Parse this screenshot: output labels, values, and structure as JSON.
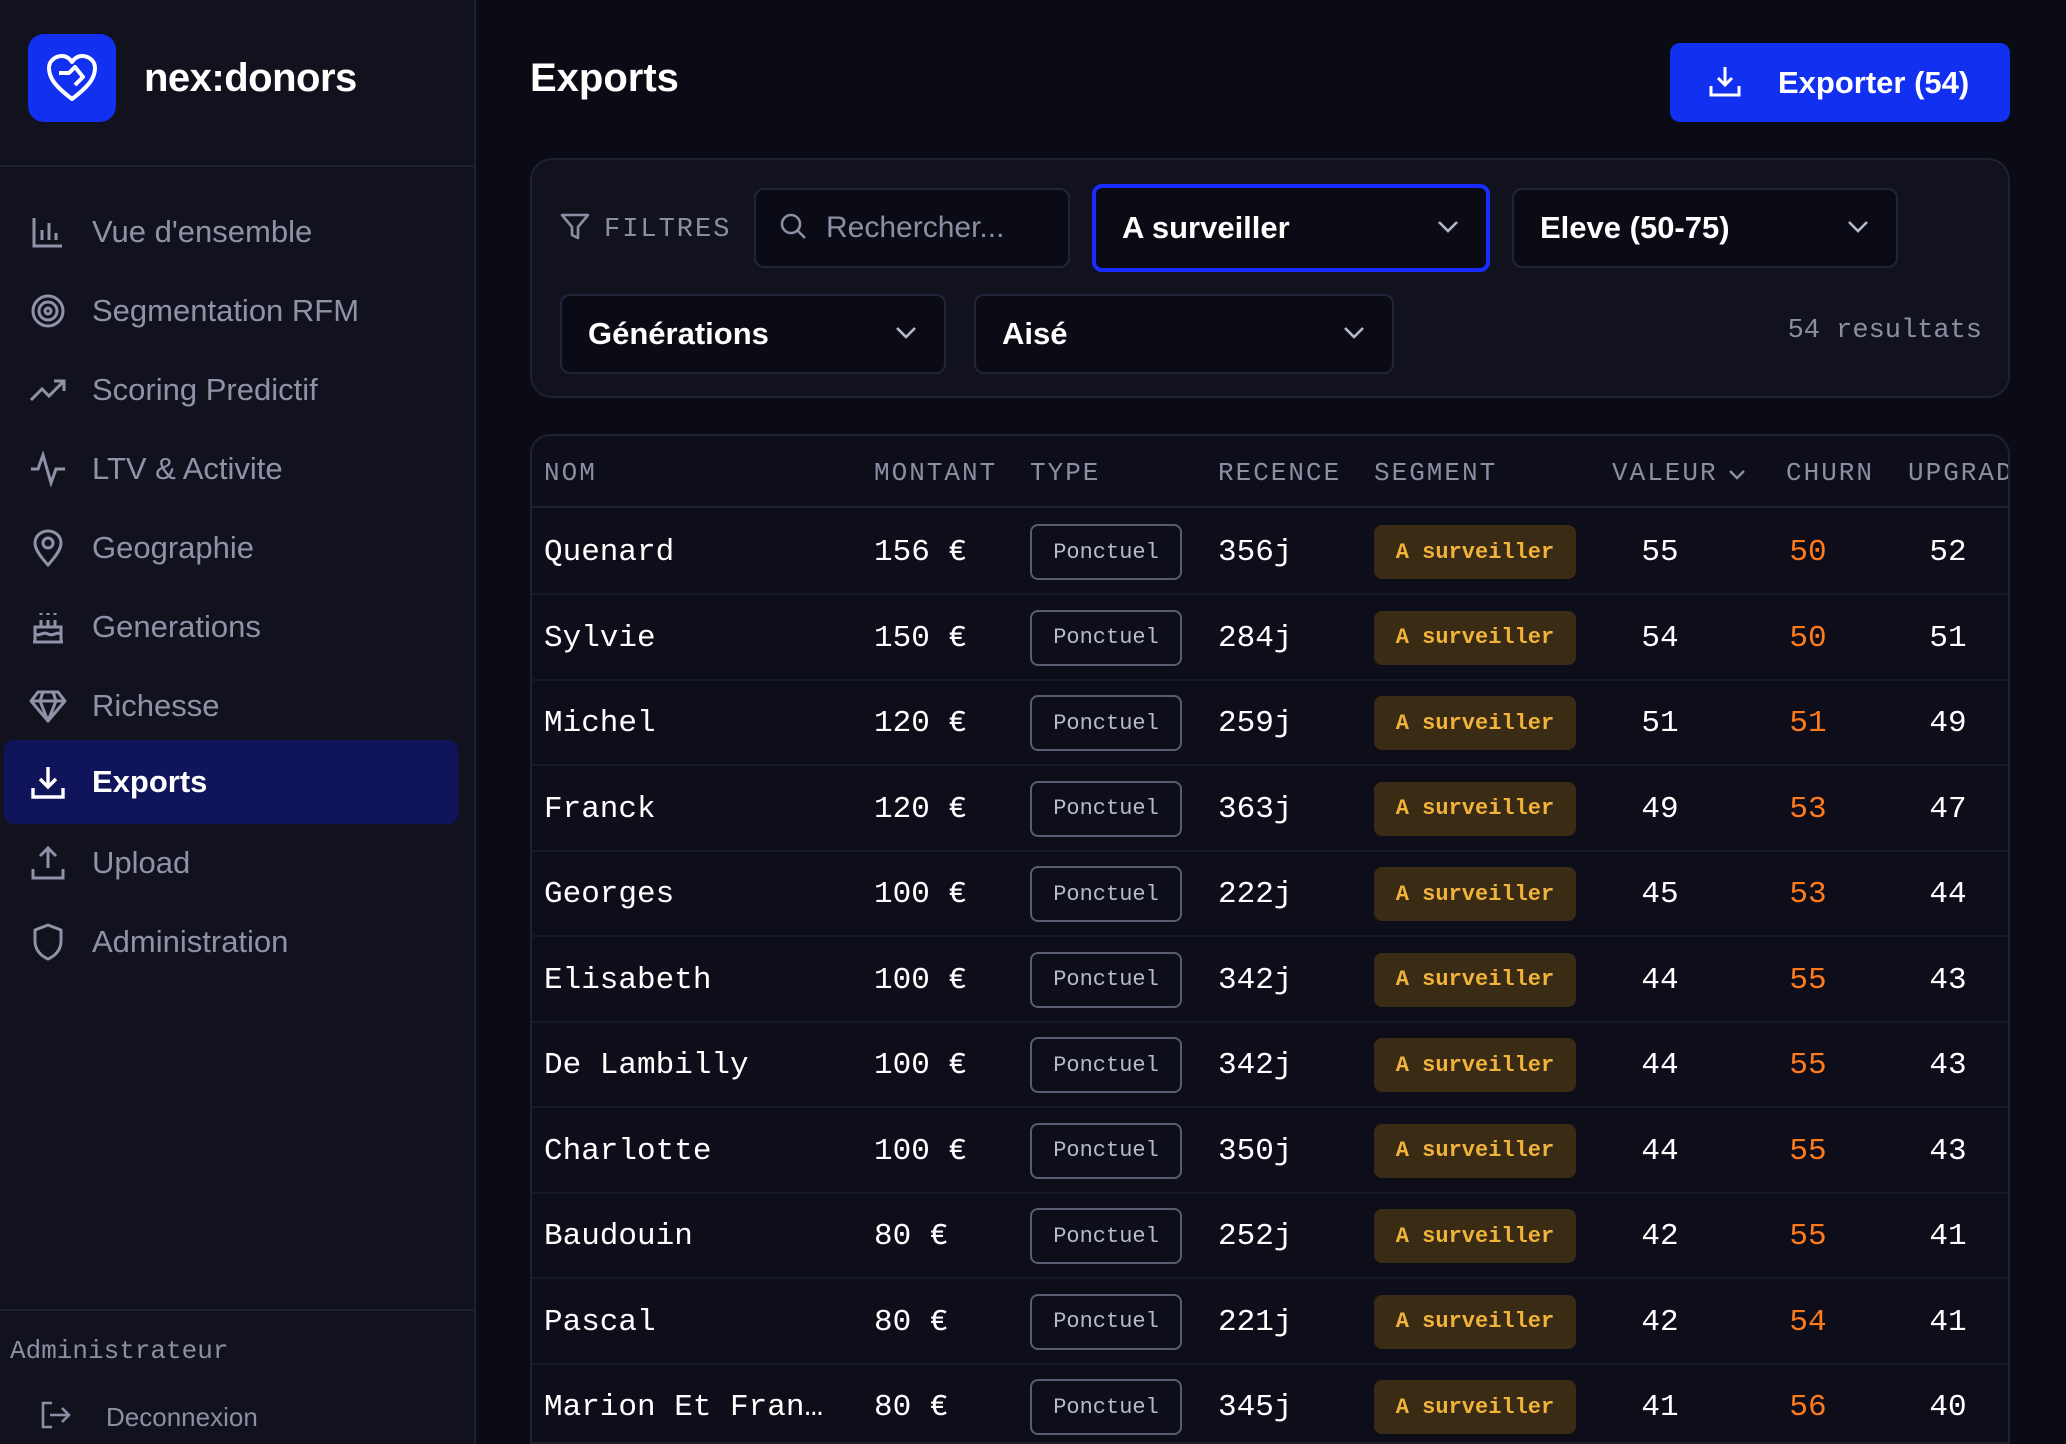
{
  "brand": {
    "name": "nex:donors"
  },
  "nav": [
    {
      "label": "Vue d'ensemble",
      "icon": "bar-chart-icon"
    },
    {
      "label": "Segmentation RFM",
      "icon": "target-icon"
    },
    {
      "label": "Scoring Predictif",
      "icon": "trend-up-icon"
    },
    {
      "label": "LTV & Activite",
      "icon": "activity-icon"
    },
    {
      "label": "Geographie",
      "icon": "map-pin-icon"
    },
    {
      "label": "Generations",
      "icon": "cake-icon"
    },
    {
      "label": "Richesse",
      "icon": "gem-icon"
    },
    {
      "label": "Exports",
      "icon": "download-icon",
      "active": true
    },
    {
      "label": "Upload",
      "icon": "upload-icon"
    },
    {
      "label": "Administration",
      "icon": "shield-icon"
    }
  ],
  "sidebar_footer": {
    "role": "Administrateur",
    "logout": "Deconnexion"
  },
  "header": {
    "title": "Exports",
    "export_label": "Exporter (54)"
  },
  "filters": {
    "label": "FILTRES",
    "search_placeholder": "Rechercher...",
    "segment": "A surveiller",
    "score": "Eleve (50-75)",
    "generation": "Générations",
    "wealth": "Aisé",
    "results": "54 resultats"
  },
  "table": {
    "columns": [
      "NOM",
      "MONTANT",
      "TYPE",
      "RECENCE",
      "SEGMENT",
      "VALEUR",
      "CHURN",
      "UPGRAD"
    ],
    "rows": [
      {
        "nom": "Quenard",
        "montant": "156 €",
        "type": "Ponctuel",
        "recence": "356j",
        "segment": "A surveiller",
        "valeur": "55",
        "churn": "50",
        "upgrad": "52"
      },
      {
        "nom": "Sylvie",
        "montant": "150 €",
        "type": "Ponctuel",
        "recence": "284j",
        "segment": "A surveiller",
        "valeur": "54",
        "churn": "50",
        "upgrad": "51"
      },
      {
        "nom": "Michel",
        "montant": "120 €",
        "type": "Ponctuel",
        "recence": "259j",
        "segment": "A surveiller",
        "valeur": "51",
        "churn": "51",
        "upgrad": "49"
      },
      {
        "nom": "Franck",
        "montant": "120 €",
        "type": "Ponctuel",
        "recence": "363j",
        "segment": "A surveiller",
        "valeur": "49",
        "churn": "53",
        "upgrad": "47"
      },
      {
        "nom": "Georges",
        "montant": "100 €",
        "type": "Ponctuel",
        "recence": "222j",
        "segment": "A surveiller",
        "valeur": "45",
        "churn": "53",
        "upgrad": "44"
      },
      {
        "nom": "Elisabeth",
        "montant": "100 €",
        "type": "Ponctuel",
        "recence": "342j",
        "segment": "A surveiller",
        "valeur": "44",
        "churn": "55",
        "upgrad": "43"
      },
      {
        "nom": "De Lambilly",
        "montant": "100 €",
        "type": "Ponctuel",
        "recence": "342j",
        "segment": "A surveiller",
        "valeur": "44",
        "churn": "55",
        "upgrad": "43"
      },
      {
        "nom": "Charlotte",
        "montant": "100 €",
        "type": "Ponctuel",
        "recence": "350j",
        "segment": "A surveiller",
        "valeur": "44",
        "churn": "55",
        "upgrad": "43"
      },
      {
        "nom": "Baudouin",
        "montant": "80 €",
        "type": "Ponctuel",
        "recence": "252j",
        "segment": "A surveiller",
        "valeur": "42",
        "churn": "55",
        "upgrad": "41"
      },
      {
        "nom": "Pascal",
        "montant": "80 €",
        "type": "Ponctuel",
        "recence": "221j",
        "segment": "A surveiller",
        "valeur": "42",
        "churn": "54",
        "upgrad": "41"
      },
      {
        "nom": "Marion Et Fran…",
        "montant": "80 €",
        "type": "Ponctuel",
        "recence": "345j",
        "segment": "A surveiller",
        "valeur": "41",
        "churn": "56",
        "upgrad": "40"
      }
    ]
  },
  "colors": {
    "accent": "#1230f0",
    "churn": "#ff7a1a",
    "badge_text": "#f2b33a",
    "badge_bg": "#3a2c14"
  }
}
